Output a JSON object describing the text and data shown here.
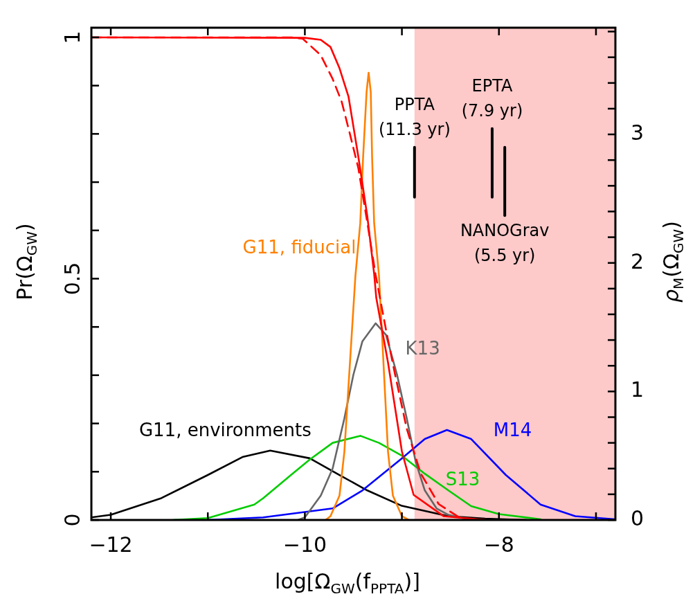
{
  "chart_data": {
    "type": "line",
    "xlabel": "log[Ω$_{GW}$(f$_{PPTA}$)]",
    "ylabel": "Pr(Ω$_{GW}$)",
    "y2label": "ρ$_{M}$(Ω$_{GW}$)",
    "xlim": [
      -12.2,
      -6.8
    ],
    "xticks": [
      {
        "value": -12,
        "label": "−12"
      },
      {
        "value": -11,
        "label": null
      },
      {
        "value": -10,
        "label": "−10"
      },
      {
        "value": -9,
        "label": null
      },
      {
        "value": -8,
        "label": "−8"
      },
      {
        "value": -7,
        "label": null
      }
    ],
    "ylim": [
      0,
      1.02
    ],
    "yticks": [
      0,
      {
        "value": 0.1,
        "label": null
      },
      {
        "value": 0.2,
        "label": null
      },
      {
        "value": 0.3,
        "label": null
      },
      {
        "value": 0.4,
        "label": null
      },
      0.5,
      {
        "value": 0.6,
        "label": null
      },
      {
        "value": 0.7,
        "label": null
      },
      {
        "value": 0.8,
        "label": null
      },
      {
        "value": 0.9,
        "label": null
      },
      1
    ],
    "y2lim": [
      0,
      3.83
    ],
    "y2ticks": [
      0,
      {
        "value": 0.2,
        "label": null
      },
      {
        "value": 0.4,
        "label": null
      },
      {
        "value": 0.6,
        "label": null
      },
      {
        "value": 0.8,
        "label": null
      },
      1,
      {
        "value": 1.2,
        "label": null
      },
      {
        "value": 1.4,
        "label": null
      },
      {
        "value": 1.6,
        "label": null
      },
      {
        "value": 1.8,
        "label": null
      },
      2,
      {
        "value": 2.2,
        "label": null
      },
      {
        "value": 2.4,
        "label": null
      },
      {
        "value": 2.6,
        "label": null
      },
      {
        "value": 2.8,
        "label": null
      },
      3,
      {
        "value": 3.2,
        "label": null
      },
      {
        "value": 3.4,
        "label": null
      },
      {
        "value": 3.6,
        "label": null
      },
      {
        "value": 3.8,
        "label": null
      }
    ],
    "grid": false,
    "legend": false,
    "marker": "none",
    "bands": [
      {
        "axis": "x",
        "from": -8.87,
        "to": -6.8,
        "color": "#fdc9c9"
      }
    ],
    "series": [
      {
        "color": "#ff0000",
        "x": [
          -12.2,
          -10,
          -9.836,
          -9.736,
          -9.643,
          -9.55,
          -9.45,
          -9.357,
          -9.286,
          -9.264,
          -9.143,
          -9.0,
          -8.879,
          -8.571,
          -8.143
        ],
        "values": [
          1,
          0.999,
          0.995,
          0.98,
          0.936,
          0.877,
          0.754,
          0.63,
          0.51,
          0.46,
          0.326,
          0.142,
          0.052,
          0.008,
          0
        ]
      },
      {
        "color": "#ff0000",
        "line_style": "dashed",
        "x": [
          -12.2,
          -10.143,
          -10.021,
          -9.836,
          -9.714,
          -9.621,
          -9.536,
          -9.45,
          -9.357,
          -9.271,
          -9.164,
          -9.071,
          -8.95,
          -8.807,
          -8.621,
          -8.407,
          -8.143
        ],
        "values": [
          1,
          1,
          0.997,
          0.963,
          0.914,
          0.867,
          0.8,
          0.73,
          0.617,
          0.508,
          0.394,
          0.302,
          0.189,
          0.097,
          0.033,
          0.005,
          0
        ]
      },
      {
        "name": "G11, fiducial",
        "color": "#ff8000",
        "axis": "y2",
        "x": [
          -9.786,
          -9.736,
          -9.643,
          -9.593,
          -9.479,
          -9.429,
          -9.4,
          -9.364,
          -9.343,
          -9.321,
          -9.307,
          -9.286,
          -9.236,
          -9.143,
          -9.093,
          -9.0,
          -8.929
        ],
        "values": [
          0,
          0.03,
          0.19,
          0.53,
          1.9,
          2.31,
          2.82,
          3.33,
          3.48,
          3.33,
          2.82,
          2.31,
          1.9,
          0.53,
          0.19,
          0.03,
          0
        ]
      },
      {
        "name": "K13",
        "color": "#666666",
        "axis": "y2",
        "x": [
          -10.071,
          -10.0,
          -9.836,
          -9.714,
          -9.593,
          -9.5,
          -9.407,
          -9.271,
          -9.164,
          -9.05,
          -8.95,
          -8.857,
          -8.764,
          -8.643,
          -8.521,
          -8.286
        ],
        "values": [
          0,
          0.02,
          0.19,
          0.4,
          0.79,
          1.13,
          1.39,
          1.53,
          1.44,
          1.13,
          0.79,
          0.45,
          0.23,
          0.09,
          0.04,
          0
        ]
      },
      {
        "name": "S13",
        "color": "#00cc00",
        "axis": "y2",
        "x": [
          -11.357,
          -11.0,
          -10.521,
          -10.429,
          -10.143,
          -9.95,
          -9.714,
          -9.429,
          -9.236,
          -9.0,
          -8.764,
          -8.521,
          -8.286,
          -8.0,
          -7.571
        ],
        "values": [
          0,
          0.015,
          0.12,
          0.17,
          0.35,
          0.47,
          0.6,
          0.655,
          0.6,
          0.5,
          0.36,
          0.23,
          0.108,
          0.046,
          0.005
        ]
      },
      {
        "name": "M14",
        "color": "#0000ff",
        "axis": "y2",
        "x": [
          -11.0,
          -10.429,
          -9.714,
          -9.407,
          -9.0,
          -8.764,
          -8.536,
          -8.286,
          -7.929,
          -7.571,
          -7.214,
          -6.8
        ],
        "values": [
          0,
          0.02,
          0.09,
          0.23,
          0.48,
          0.63,
          0.7,
          0.63,
          0.35,
          0.12,
          0.03,
          0.005
        ]
      },
      {
        "name": "G11, environments",
        "color": "#000000",
        "axis": "y2",
        "x": [
          -12.2,
          -12.0,
          -11.479,
          -11.0,
          -10.643,
          -10.357,
          -9.95,
          -9.643,
          -9.357,
          -9.0,
          -8.521,
          -8.143,
          -7.714
        ],
        "values": [
          0.02,
          0.04,
          0.17,
          0.35,
          0.49,
          0.54,
          0.48,
          0.35,
          0.23,
          0.11,
          0.03,
          0.01,
          0
        ]
      },
      {
        "color": "#000000",
        "x": [
          -8.87,
          -8.87
        ],
        "values": [
          0.669,
          0.772
        ]
      },
      {
        "color": "#000000",
        "x": [
          -8.07,
          -8.07
        ],
        "values": [
          0.669,
          0.811
        ]
      },
      {
        "color": "#000000",
        "x": [
          -7.94,
          -7.94
        ],
        "values": [
          0.631,
          0.772
        ]
      }
    ],
    "annotations": [
      {
        "text": "PPTA\n(11.3 yr)",
        "x": -8.87,
        "y": 0.772
      },
      {
        "text": "EPTA\n(7.9 yr)",
        "x": -8.07,
        "y": 0.811
      },
      {
        "text": "NANOGrav\n(5.5 yr)",
        "x": -7.94,
        "y": 0.631
      }
    ]
  }
}
